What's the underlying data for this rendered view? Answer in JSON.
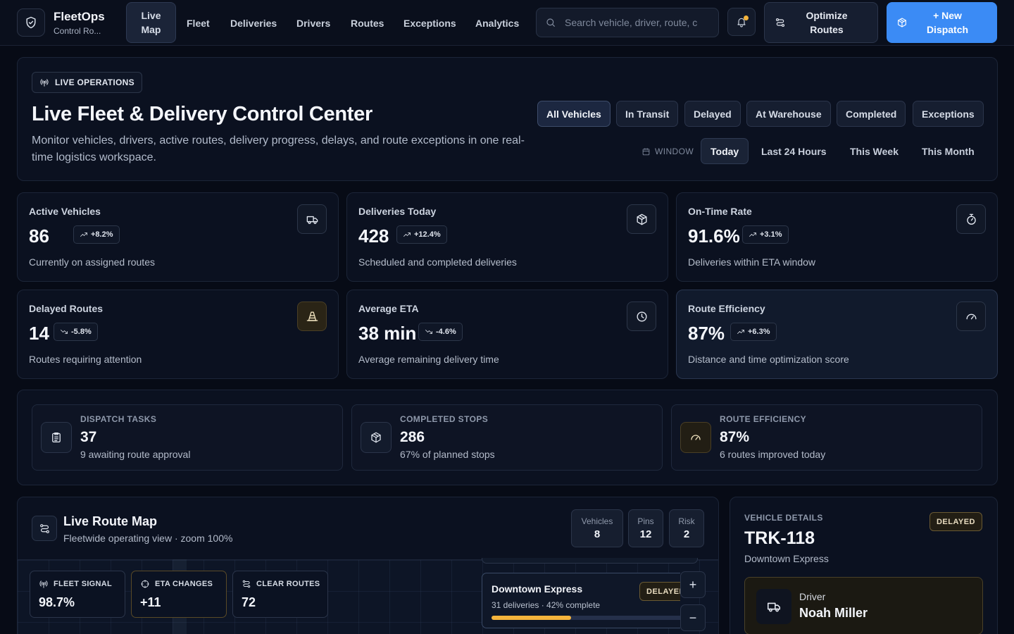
{
  "brand": {
    "name": "FleetOps",
    "subtitle": "Control Ro..."
  },
  "nav": {
    "active": {
      "line1": "Live",
      "line2": "Map"
    },
    "items": [
      "Fleet",
      "Deliveries",
      "Drivers",
      "Routes",
      "Exceptions",
      "Analytics"
    ]
  },
  "search": {
    "placeholder": "Search vehicle, driver, route, c",
    "value": ""
  },
  "actions": {
    "optimize": {
      "line1": "Optimize",
      "line2": "Routes"
    },
    "dispatch": {
      "line1": "+ New",
      "line2": "Dispatch"
    }
  },
  "hero": {
    "badge": "LIVE OPERATIONS",
    "title": "Live Fleet & Delivery Control Center",
    "description": "Monitor vehicles, drivers, active routes, delivery progress, delays, and route exceptions in one real-time logistics workspace.",
    "filters": [
      "All Vehicles",
      "In Transit",
      "Delayed",
      "At Warehouse",
      "Completed",
      "Exceptions"
    ],
    "active_filter": "All Vehicles",
    "window_label": "WINDOW",
    "windows": [
      "Today",
      "Last 24 Hours",
      "This Week",
      "This Month"
    ],
    "active_window": "Today"
  },
  "kpis": [
    {
      "label": "Active Vehicles",
      "value": "86",
      "delta": "+8.2%",
      "trend": "up",
      "sub": "Currently on assigned routes",
      "icon": "truck-icon"
    },
    {
      "label": "Deliveries Today",
      "value": "428",
      "delta": "+12.4%",
      "trend": "up",
      "sub": "Scheduled and completed deliveries",
      "icon": "package-icon"
    },
    {
      "label": "On-Time Rate",
      "value": "91.6%",
      "delta": "+3.1%",
      "trend": "up",
      "sub": "Deliveries within ETA window",
      "icon": "stopwatch-icon"
    },
    {
      "label": "Delayed Routes",
      "value": "14",
      "delta": "-5.8%",
      "trend": "down",
      "sub": "Routes requiring attention",
      "icon": "traffic-cone-icon"
    },
    {
      "label": "Average ETA",
      "value": "38 min",
      "delta": "-4.6%",
      "trend": "down",
      "sub": "Average remaining delivery time",
      "icon": "clock-icon"
    },
    {
      "label": "Route Efficiency",
      "value": "87%",
      "delta": "+6.3%",
      "trend": "up",
      "sub": "Distance and time optimization score",
      "icon": "gauge-icon"
    }
  ],
  "summary": [
    {
      "label": "DISPATCH TASKS",
      "value": "37",
      "sub": "9 awaiting route approval",
      "icon": "clipboard-icon"
    },
    {
      "label": "COMPLETED STOPS",
      "value": "286",
      "sub": "67% of planned stops",
      "icon": "package-icon"
    },
    {
      "label": "ROUTE EFFICIENCY",
      "value": "87%",
      "sub": "6 routes improved today",
      "icon": "gauge-icon"
    }
  ],
  "map": {
    "title": "Live Route Map",
    "subtitle": "Fleetwide operating view · zoom 100%",
    "stats": [
      {
        "label": "Vehicles",
        "value": "8"
      },
      {
        "label": "Pins",
        "value": "12"
      },
      {
        "label": "Risk",
        "value": "2"
      }
    ],
    "overlays": [
      {
        "label": "FLEET SIGNAL",
        "value": "98.7%",
        "icon": "signal-icon"
      },
      {
        "label": "ETA CHANGES",
        "value": "+11",
        "icon": "crosshair-icon"
      },
      {
        "label": "CLEAR ROUTES",
        "value": "72",
        "icon": "route-icon"
      }
    ],
    "route_card": {
      "name": "Downtown Express",
      "sub": "31 deliveries · 42% complete",
      "status": "DELAYED",
      "progress": 0.42
    },
    "zoom_in": "+",
    "zoom_out": "−"
  },
  "vehicle": {
    "section_label": "VEHICLE DETAILS",
    "status": "DELAYED",
    "id": "TRK-118",
    "route": "Downtown Express",
    "driver_label": "Driver",
    "driver_name": "Noah Miller"
  },
  "colors": {
    "accent": "#3b8bf5",
    "warning": "#f5b43c",
    "background": "#070b16",
    "panel": "#0b1120"
  }
}
